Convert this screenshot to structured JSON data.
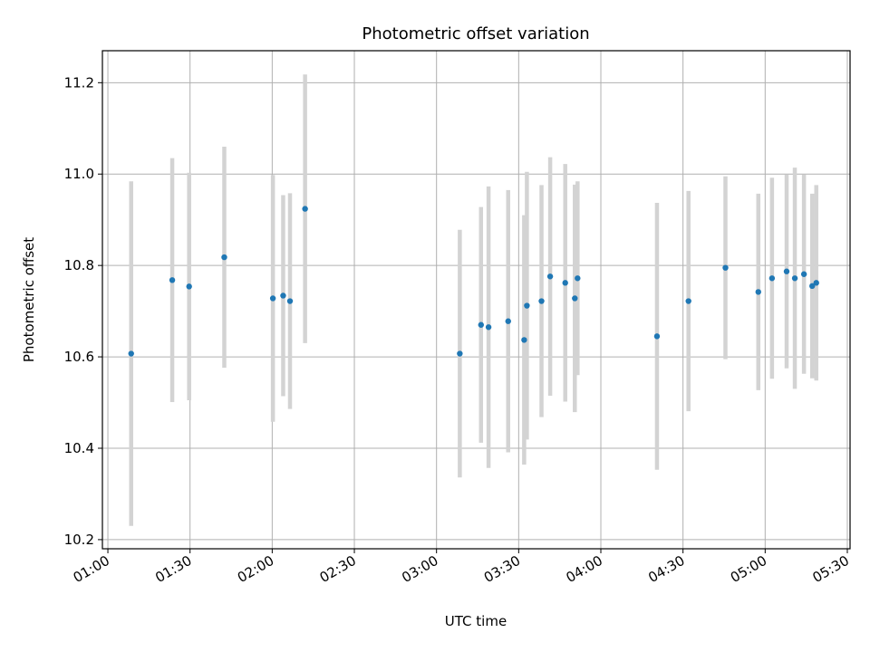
{
  "chart_data": {
    "type": "scatter",
    "title": "Photometric offset variation",
    "xlabel": "UTC time",
    "ylabel": "Photometric offset",
    "x_unit": "UTC HH:MM",
    "xlim": [
      "00:58",
      "05:31"
    ],
    "ylim": [
      10.18,
      11.27
    ],
    "xticks": [
      "01:00",
      "01:30",
      "02:00",
      "02:30",
      "03:00",
      "03:30",
      "04:00",
      "04:30",
      "05:00",
      "05:30"
    ],
    "yticks": [
      10.2,
      10.4,
      10.6,
      10.8,
      11.0,
      11.2
    ],
    "ytick_labels": [
      "10.2",
      "10.4",
      "10.6",
      "10.8",
      "11.0",
      "11.2"
    ],
    "grid": true,
    "marker_color": "#1f77b4",
    "errorbar_color": "#d3d3d3",
    "series": [
      {
        "points": [
          {
            "x": "01:08:30",
            "y": 10.607,
            "yerr": 0.377
          },
          {
            "x": "01:23:30",
            "y": 10.768,
            "yerr": 0.267
          },
          {
            "x": "01:29:40",
            "y": 10.754,
            "yerr": 0.249
          },
          {
            "x": "01:42:30",
            "y": 10.818,
            "yerr": 0.242
          },
          {
            "x": "02:00:15",
            "y": 10.728,
            "yerr": 0.27
          },
          {
            "x": "02:04:00",
            "y": 10.734,
            "yerr": 0.22
          },
          {
            "x": "02:06:30",
            "y": 10.722,
            "yerr": 0.236
          },
          {
            "x": "02:12:00",
            "y": 10.924,
            "yerr": 0.294
          },
          {
            "x": "03:08:30",
            "y": 10.607,
            "yerr": 0.271
          },
          {
            "x": "03:16:15",
            "y": 10.67,
            "yerr": 0.258
          },
          {
            "x": "03:19:00",
            "y": 10.665,
            "yerr": 0.308
          },
          {
            "x": "03:26:10",
            "y": 10.678,
            "yerr": 0.287
          },
          {
            "x": "03:32:00",
            "y": 10.637,
            "yerr": 0.273
          },
          {
            "x": "03:33:00",
            "y": 10.712,
            "yerr": 0.293
          },
          {
            "x": "03:38:20",
            "y": 10.722,
            "yerr": 0.254
          },
          {
            "x": "03:41:30",
            "y": 10.776,
            "yerr": 0.261
          },
          {
            "x": "03:47:00",
            "y": 10.762,
            "yerr": 0.26
          },
          {
            "x": "03:50:30",
            "y": 10.728,
            "yerr": 0.249
          },
          {
            "x": "03:51:30",
            "y": 10.772,
            "yerr": 0.212
          },
          {
            "x": "04:20:30",
            "y": 10.645,
            "yerr": 0.292
          },
          {
            "x": "04:32:00",
            "y": 10.722,
            "yerr": 0.241
          },
          {
            "x": "04:45:30",
            "y": 10.795,
            "yerr": 0.2
          },
          {
            "x": "04:57:30",
            "y": 10.742,
            "yerr": 0.215
          },
          {
            "x": "05:02:30",
            "y": 10.772,
            "yerr": 0.22
          },
          {
            "x": "05:07:50",
            "y": 10.787,
            "yerr": 0.212
          },
          {
            "x": "05:10:50",
            "y": 10.772,
            "yerr": 0.242
          },
          {
            "x": "05:14:10",
            "y": 10.781,
            "yerr": 0.218
          },
          {
            "x": "05:17:10",
            "y": 10.755,
            "yerr": 0.202
          },
          {
            "x": "05:18:40",
            "y": 10.762,
            "yerr": 0.214
          }
        ]
      }
    ]
  }
}
